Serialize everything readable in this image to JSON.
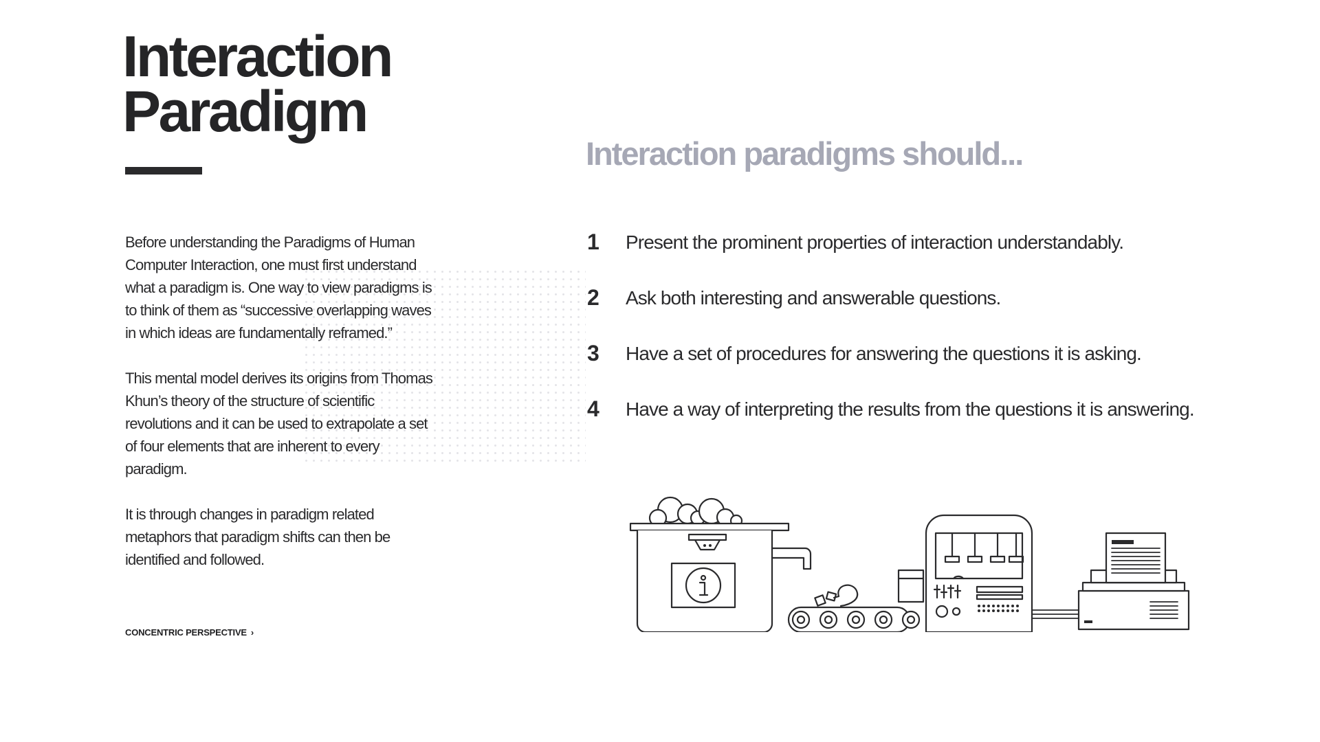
{
  "title": {
    "line1": "Interaction",
    "line2": "Paradigm"
  },
  "intro": {
    "paragraphs": [
      "Before understanding the Paradigms of Human Computer Interaction, one must first understand what a paradigm is. One way to view paradigms is to think of them as  “successive overlapping waves in which ideas are fundamentally  reframed.”",
      "This mental model derives its origins from Thomas Khun’s theory of the structure of scientific revolutions and it can be used to extrapolate a set of four elements that are inherent to every paradigm.",
      "It is through changes in paradigm related metaphors that paradigm shifts can then be identified and followed."
    ]
  },
  "link": {
    "label": "CONCENTRIC PERSPECTIVE",
    "chevron": "›"
  },
  "subheading": "Interaction paradigms should...",
  "principles": [
    {
      "number": "1",
      "text": "Present the prominent properties of interaction  understandably."
    },
    {
      "number": "2",
      "text": "Ask both interesting and answerable questions."
    },
    {
      "number": "3",
      "text": "Have a set of procedures for answering the questions it is asking."
    },
    {
      "number": "4",
      "text": "Have a way of interpreting the results from the questions it is answering."
    }
  ],
  "colors": {
    "text": "#2a2a2c",
    "subheading": "#a6a8b5",
    "background": "#ffffff"
  },
  "icons": [
    "info-icon",
    "question-mark-icon",
    "printer-icon",
    "slider-icon"
  ]
}
